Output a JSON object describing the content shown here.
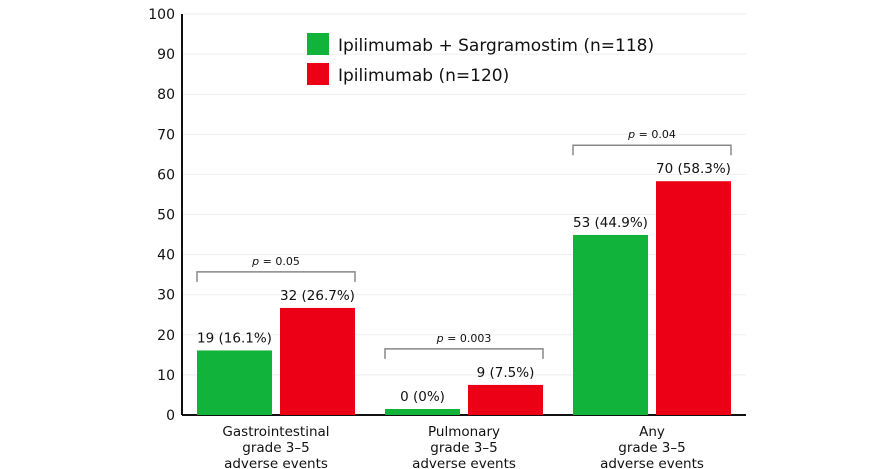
{
  "chart_data": {
    "type": "bar",
    "categories": [
      [
        "Gastrointestinal",
        "grade 3–5",
        "adverse events"
      ],
      [
        "Pulmonary",
        "grade 3–5",
        "adverse events"
      ],
      [
        "Any",
        "grade 3–5",
        "adverse events"
      ]
    ],
    "series": [
      {
        "name": "Ipilimumab + Sargramostim (n=118)",
        "color": "#12b33a",
        "values": [
          16.1,
          0,
          44.9
        ],
        "labels": [
          "19 (16.1%)",
          "0 (0%)",
          "53 (44.9%)"
        ]
      },
      {
        "name": "Ipilimumab (n=120)",
        "color": "#ec0016",
        "values": [
          26.7,
          7.5,
          58.3
        ],
        "labels": [
          "32 (26.7%)",
          "9 (7.5%)",
          "70 (58.3%)"
        ]
      }
    ],
    "p_values": [
      "0.05",
      "0.003",
      "0.04"
    ],
    "p_symbol": "p",
    "ylim": [
      0,
      100
    ],
    "yticks": [
      0,
      10,
      20,
      30,
      40,
      50,
      60,
      70,
      80,
      90,
      100
    ],
    "grid": true,
    "legend": "top-center"
  }
}
